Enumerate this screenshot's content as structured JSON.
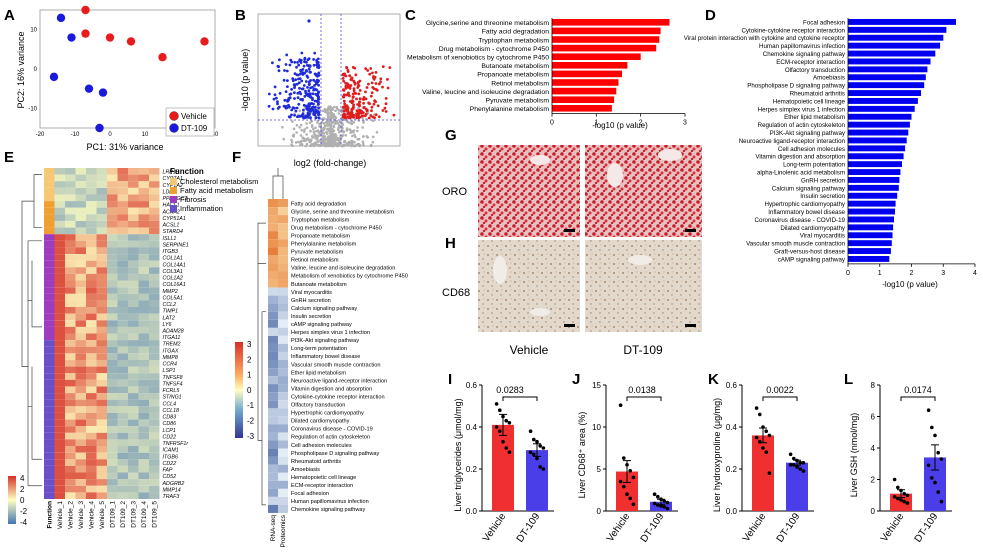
{
  "panels": {
    "A": {
      "letter": "A",
      "xlabel": "PC1: 31% variance",
      "ylabel": "PC2: 16% variance",
      "xticks": [
        "-20",
        "-10",
        "0",
        "10",
        "20",
        "30"
      ],
      "yticks": [
        "10",
        "0",
        "-10"
      ],
      "legend": [
        {
          "label": "Vehicle",
          "color": "#e81c1c"
        },
        {
          "label": "DT-109",
          "color": "#1a1adc"
        }
      ],
      "chart_data": {
        "type": "scatter",
        "xlabel": "PC1: 31% variance",
        "ylabel": "PC2: 16% variance",
        "xlim": [
          -20,
          30
        ],
        "ylim": [
          -15,
          15
        ],
        "series": [
          {
            "name": "Vehicle",
            "color": "#e81c1c",
            "points": [
              [
                -7,
                15
              ],
              [
                -7,
                9
              ],
              [
                0,
                8
              ],
              [
                6,
                7
              ],
              [
                15,
                3
              ],
              [
                27,
                7
              ]
            ]
          },
          {
            "name": "DT-109",
            "color": "#1a1adc",
            "points": [
              [
                -14,
                13
              ],
              [
                -11,
                8
              ],
              [
                -6,
                -5
              ],
              [
                -2,
                -6
              ],
              [
                -16,
                -2
              ],
              [
                -3,
                -15
              ]
            ]
          }
        ]
      }
    },
    "B": {
      "letter": "B",
      "xlabel": "log2 (fold-change)",
      "ylabel": "-log10 (p value)"
    },
    "C": {
      "letter": "C",
      "xlabel": "-log10 (p value)",
      "xticks": [
        "0",
        "1",
        "2",
        "3"
      ],
      "chart_data": {
        "type": "bar",
        "orientation": "horizontal",
        "color": "#ff0000",
        "xlabel": "-log10 (p value)",
        "xlim": [
          0,
          3
        ],
        "categories": [
          "Glycine,serine and threonine metabolism",
          "Fatty acid degradation",
          "Tryptophan metabolism",
          "Drug metabolism - cytochrome P450",
          "Metabolism of xenobiotics by cytochrome P450",
          "Butanoate metabolism",
          "Propanoate metabolism",
          "Retinol metabolism",
          "Valine, leucine and isoleucine degradation",
          "Pyruvate metabolism",
          "Phenylalanine metabolism"
        ],
        "values": [
          2.65,
          2.45,
          2.42,
          2.35,
          2.0,
          1.7,
          1.58,
          1.5,
          1.45,
          1.4,
          1.35
        ]
      }
    },
    "D": {
      "letter": "D",
      "xlabel": "-log10 (p value)",
      "xticks": [
        "0",
        "1",
        "2",
        "3",
        "4"
      ],
      "chart_data": {
        "type": "bar",
        "orientation": "horizontal",
        "color": "#0000ee",
        "xlabel": "-log10 (p value)",
        "xlim": [
          0,
          4
        ],
        "categories": [
          "Focal adhesion",
          "Cytokine-cytokine receptor interaction",
          "Viral protein interaction with cytokine and cytokine receptor",
          "Human papillomavirus infection",
          "Chemokine signaling pathway",
          "ECM-receptor interaction",
          "Olfactory transduction",
          "Amoebiasis",
          "Phospholipase D signaling pathway",
          "Rheumatoid arthritis",
          "Hematopoietic cell lineage",
          "Herpes simplex virus 1 infection",
          "Ether lipid metabolism",
          "Regulation of actin cytoskeleton",
          "PI3K-Akt signaling pathway",
          "Neuroactive ligand-receptor interaction",
          "Cell adhesion molecules",
          "Vitamin digestion and absorption",
          "Long-term potentiation",
          "alpha-Linolenic acid metabolism",
          "GnRH secretion",
          "Calcium signaling pathway",
          "Insulin secretion",
          "Hypertrophic cardiomyopathy",
          "Inflammatory bowel disease",
          "Coronavirus disease - COVID-19",
          "Dilated cardiomyopathy",
          "Viral myocarditis",
          "Vascular smooth muscle contraction",
          "Graft-versus-host disease",
          "cAMP signaling pathway"
        ],
        "values": [
          3.4,
          3.1,
          3.0,
          2.9,
          2.75,
          2.6,
          2.5,
          2.45,
          2.4,
          2.3,
          2.2,
          2.1,
          2.0,
          1.95,
          1.9,
          1.85,
          1.8,
          1.75,
          1.7,
          1.65,
          1.62,
          1.6,
          1.55,
          1.5,
          1.48,
          1.45,
          1.42,
          1.4,
          1.38,
          1.35,
          1.3
        ]
      }
    },
    "E": {
      "letter": "E",
      "legend_title": "Function",
      "legend": [
        {
          "label": "Cholesterol metabolism",
          "color": "#f7c873"
        },
        {
          "label": "Fatty acid metabolism",
          "color": "#f0a030"
        },
        {
          "label": "Fibrosis",
          "color": "#9e3cc0"
        },
        {
          "label": "Inflammation",
          "color": "#6a50c8"
        }
      ],
      "colorbar_ticks": [
        "4",
        "2",
        "0",
        "-2",
        "-4"
      ],
      "columns": [
        "Function",
        "Vehicle_1",
        "Vehicle_2",
        "Vehicle_3",
        "Vehicle_4",
        "Vehicle_5",
        "DT109_1",
        "DT109_2",
        "DT109_3",
        "DT109_4",
        "DT109_5"
      ],
      "genes": [
        "LRP1B",
        "CYP7A1",
        "CYP1A2",
        "LDLR",
        "PPARGC1",
        "HACL1",
        "ACAA2",
        "CYP51A1",
        "ACSL1",
        "STARD4",
        "ISLL1",
        "SERPINE1",
        "ITGB3",
        "COL1A1",
        "COL14A1",
        "COL3A1",
        "COL1A2",
        "COL16A1",
        "MMP2",
        "COL5A1",
        "CCL2",
        "TIMP1",
        "LAT2",
        "LY6",
        "ADAM28",
        "ITGA11",
        "TREM2",
        "ITGAX",
        "MMP8",
        "CCR4",
        "LSP1",
        "TNFSF8",
        "TNFSF4",
        "FCRL5",
        "STING1",
        "CCL4",
        "CCL18",
        "CD83",
        "CD86",
        "LCP1",
        "CD22",
        "TNFRSF1r",
        "ICAM1",
        "ITGB6",
        "CD22",
        "FAP",
        "CD52",
        "ADGRB2",
        "MMP14",
        "TRAF3"
      ]
    },
    "F": {
      "letter": "F",
      "colorbar_ticks": [
        "3",
        "2",
        "1",
        "0",
        "-1",
        "-2",
        "-3"
      ],
      "columns": [
        "RNA-seq",
        "Proteomics"
      ],
      "pathways": [
        "Fatty acid degradation",
        "Glycine, serine and threonine metabolism",
        "Tryptophan metabolism",
        "Drug metabolism - cytochrome P450",
        "Propanoate metabolism",
        "Phenylalanine metabolism",
        "Pyruvate metabolism",
        "Retinol metabolism",
        "Valine, leucine and isoleucine degradation",
        "Metabolism of xenobiotics by cytochrome P450",
        "Butanoate metabolism",
        "Viral myocarditis",
        "GnRH secretion",
        "Calcium signaling pathway",
        "Insulin secretion",
        "cAMP signaling pathway",
        "Herpes simplex virus 1 infection",
        "PI3K-Akt signaling pathway",
        "Long-term potentiation",
        "Inflammatory bowel disease",
        "Vascular smooth muscle contraction",
        "Ether lipid metabolism",
        "Neuroactive ligand-receptor interaction",
        "Vitamin digestion and absorption",
        "Cytokine-cytokine receptor interaction",
        "Olfactory transduction",
        "Hypertrophic cardiomyopathy",
        "Dilated cardiomyopathy",
        "Coronavirus disease - COVID-19",
        "Regulation of actin cytoskeleton",
        "Cell adhesion molecules",
        "Phospholipase D signaling pathway",
        "Rheumatoid arthritis",
        "Amoebiasis",
        "Hematopoietic cell lineage",
        "ECM-receptor interaction",
        "Focal adhesion",
        "Human papillomavirus infection",
        "Chemokine signaling pathway"
      ]
    },
    "G": {
      "letter": "G",
      "row_label": "ORO"
    },
    "H": {
      "letter": "H",
      "row_label": "CD68",
      "col_labels": [
        "Vehicle",
        "DT-109"
      ]
    },
    "I": {
      "letter": "I",
      "ylabel": "Liver triglycerides (μmol/mg)",
      "pvalue": "0.0283",
      "yticks": [
        "0.0",
        "0.2",
        "0.4",
        "0.6"
      ],
      "chart_data": {
        "type": "bar",
        "categories": [
          "Vehicle",
          "DT-109"
        ],
        "values": [
          0.41,
          0.29
        ],
        "errors": [
          0.05,
          0.03
        ],
        "ylim": [
          0,
          0.6
        ],
        "points": [
          [
            0.51,
            0.48,
            0.45,
            0.43,
            0.42,
            0.4,
            0.38,
            0.33,
            0.3,
            0.28
          ],
          [
            0.38,
            0.34,
            0.33,
            0.31,
            0.3,
            0.28,
            0.27,
            0.25,
            0.21,
            0.2
          ]
        ]
      }
    },
    "J": {
      "letter": "J",
      "ylabel": "Liver CD68⁺ area (%)",
      "pvalue": "0.0138",
      "yticks": [
        "0",
        "5",
        "10",
        "15"
      ],
      "chart_data": {
        "type": "bar",
        "categories": [
          "Vehicle",
          "DT-109"
        ],
        "values": [
          4.7,
          1.1
        ],
        "errors": [
          1.3,
          0.3
        ],
        "ylim": [
          0,
          15
        ],
        "points": [
          [
            12.6,
            6.3,
            5.5,
            4.8,
            4.0,
            3.5,
            2.9,
            2.0,
            1.5,
            0.8
          ],
          [
            2.0,
            1.7,
            1.4,
            1.2,
            1.0,
            0.9,
            0.7,
            0.6,
            0.5,
            0.3
          ]
        ]
      }
    },
    "K": {
      "letter": "K",
      "ylabel": "Liver hydroxyproline (μg/mg)",
      "pvalue": "0.0022",
      "yticks": [
        "0.0",
        "0.2",
        "0.4",
        "0.6"
      ],
      "chart_data": {
        "type": "bar",
        "categories": [
          "Vehicle",
          "DT-109"
        ],
        "values": [
          0.36,
          0.23
        ],
        "errors": [
          0.035,
          0.012
        ],
        "ylim": [
          0,
          0.6
        ],
        "points": [
          [
            0.49,
            0.46,
            0.4,
            0.38,
            0.36,
            0.35,
            0.33,
            0.3,
            0.28,
            0.18
          ],
          [
            0.27,
            0.25,
            0.24,
            0.23,
            0.23,
            0.22,
            0.22,
            0.21,
            0.2,
            0.19
          ]
        ]
      }
    },
    "L": {
      "letter": "L",
      "ylabel": "Liver GSH (nmol/mg)",
      "pvalue": "0.0174",
      "yticks": [
        "0",
        "2",
        "4",
        "6",
        "8"
      ],
      "chart_data": {
        "type": "bar",
        "categories": [
          "Vehicle",
          "DT-109"
        ],
        "values": [
          1.1,
          3.4
        ],
        "errors": [
          0.25,
          0.8
        ],
        "ylim": [
          0,
          8
        ],
        "points": [
          [
            2.0,
            1.5,
            1.3,
            1.1,
            1.0,
            0.9,
            0.8,
            0.7,
            0.6,
            0.5
          ],
          [
            6.4,
            5.3,
            4.8,
            3.7,
            3.3,
            2.9,
            2.1,
            1.8,
            1.2,
            0.6
          ]
        ]
      }
    }
  }
}
